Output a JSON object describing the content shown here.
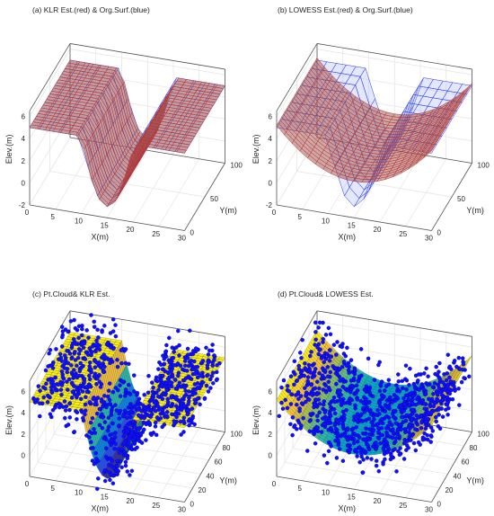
{
  "chart_data": [
    {
      "type": "surface",
      "title": "(a) KLR Est.(red) & Org.Surf.(blue)",
      "xlabel": "X(m)",
      "ylabel": "Y(m)",
      "zlabel": "Elev.(m)",
      "xticks": [
        "0",
        "5",
        "10",
        "15",
        "20",
        "25",
        "30"
      ],
      "yticks": [
        "0",
        "50",
        "100"
      ],
      "zticks": [
        "-2",
        "0",
        "2",
        "4",
        "6"
      ],
      "xlim": [
        0,
        30
      ],
      "ylim": [
        0,
        100
      ],
      "zlim": [
        -2,
        6
      ],
      "grid": true,
      "series": [
        {
          "color": "#1f2fd0",
          "form": "Z = ((X-15)/7.5)^2 - 1 on 10<=X<=20, flat plateaus on X<=10 and X>=20",
          "plateau_left": 5.0,
          "plateau_right": 5.0,
          "min": -1.0
        },
        {
          "color": "#c0392b",
          "form": "same shape as original surface",
          "min": -1.0
        }
      ]
    },
    {
      "type": "surface",
      "title": "(b) LOWESS Est.(red) & Org.Surf.(blue)",
      "xlabel": "X(m)",
      "ylabel": "Y(m)",
      "zlabel": "Elev.(m)",
      "xticks": [
        "0",
        "5",
        "10",
        "15",
        "20",
        "25",
        "30"
      ],
      "yticks": [
        "0",
        "50",
        "100"
      ],
      "zticks": [
        "-2",
        "0",
        "2",
        "4",
        "6"
      ],
      "xlim": [
        0,
        30
      ],
      "ylim": [
        0,
        100
      ],
      "zlim": [
        -2,
        6
      ],
      "grid": true,
      "series": [
        {
          "color": "#1f2fd0",
          "form": "same as panel (a) original",
          "min": -1.0
        },
        {
          "color": "#c0392b",
          "form": "smoothed parabola, shallower",
          "min": 1.3
        }
      ]
    },
    {
      "type": "surface+scatter",
      "title": "(c) Pt.Cloud& KLR Est.",
      "xlabel": "X(m)",
      "ylabel": "Y(m)",
      "zlabel": "Elev.(m)",
      "xticks": [
        "0",
        "5",
        "10",
        "15",
        "20",
        "25",
        "30"
      ],
      "yticks": [
        "0",
        "20",
        "40",
        "60",
        "80",
        "100"
      ],
      "zticks": [
        "0",
        "2",
        "4",
        "6"
      ],
      "xlim": [
        0,
        30
      ],
      "ylim": [
        0,
        100
      ],
      "zlim": [
        -2,
        7
      ],
      "grid": true,
      "colormap": "parula",
      "point_color": "#1010ff"
    },
    {
      "type": "surface+scatter",
      "title": "(d) Pt.Cloud& LOWESS Est.",
      "xlabel": "X(m)",
      "ylabel": "Y(m)",
      "zlabel": "Elev.(m)",
      "xticks": [
        "0",
        "5",
        "10",
        "15",
        "20",
        "25",
        "30"
      ],
      "yticks": [
        "0",
        "20",
        "40",
        "60",
        "80",
        "100"
      ],
      "zticks": [
        "0",
        "2",
        "4",
        "6"
      ],
      "xlim": [
        0,
        30
      ],
      "ylim": [
        0,
        100
      ],
      "zlim": [
        -2,
        7
      ],
      "grid": true,
      "colormap": "parula",
      "point_color": "#1010ff"
    }
  ]
}
